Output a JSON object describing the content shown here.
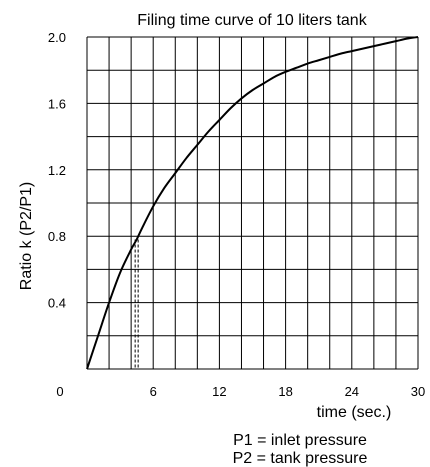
{
  "chart_data": {
    "type": "line",
    "title": "Filing time curve of 10 liters tank",
    "xlabel": "time (sec.)",
    "ylabel": "Ratio k (P2/P1)",
    "xlim": [
      0,
      30
    ],
    "ylim": [
      0,
      2.0
    ],
    "x_ticks": [
      0,
      6,
      12,
      18,
      24,
      30
    ],
    "x_tick_labels": [
      "0",
      "6",
      "12",
      "18",
      "24",
      "30"
    ],
    "y_ticks": [
      0.4,
      0.8,
      1.2,
      1.6,
      2.0
    ],
    "y_tick_labels": [
      "0.4",
      "0.8",
      "1.2",
      "1.6",
      "2.0"
    ],
    "grid": true,
    "x_grid_step": 2,
    "y_grid_step": 0.2,
    "series": [
      {
        "x": [
          0,
          1,
          2,
          3,
          4,
          4.5,
          5,
          6,
          7,
          8,
          9,
          10,
          11,
          12,
          13,
          14,
          15,
          16,
          17,
          18,
          19,
          20,
          21,
          22,
          23,
          24,
          25,
          26,
          27,
          28,
          29,
          30
        ],
        "y": [
          0,
          0.2,
          0.4,
          0.58,
          0.72,
          0.78,
          0.85,
          0.98,
          1.09,
          1.18,
          1.27,
          1.35,
          1.43,
          1.5,
          1.57,
          1.63,
          1.68,
          1.72,
          1.76,
          1.79,
          1.815,
          1.84,
          1.86,
          1.88,
          1.9,
          1.915,
          1.93,
          1.945,
          1.96,
          1.975,
          1.99,
          2.0
        ]
      }
    ],
    "reference_line": {
      "x": 4.5,
      "y": 0.78,
      "style": "dashed"
    },
    "notes": [
      "P1 = inlet pressure",
      "P2 = tank pressure"
    ]
  }
}
